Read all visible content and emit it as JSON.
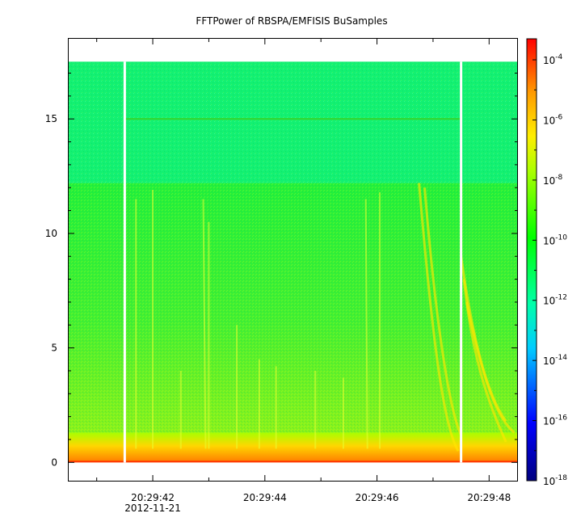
{
  "chart_data": {
    "type": "heatmap",
    "title": "FFTPower of RBSPA/EMFISIS  BuSamples",
    "xlabel": "",
    "ylabel": "",
    "x_axis": {
      "start": "20:29:40.5",
      "end": "20:29:48.5",
      "ticks": [
        {
          "value": 42,
          "label": "20:29:42",
          "sublabel": "2012-11-21"
        },
        {
          "value": 44,
          "label": "20:29:44",
          "sublabel": ""
        },
        {
          "value": 46,
          "label": "20:29:46",
          "sublabel": ""
        },
        {
          "value": 48,
          "label": "20:29:48",
          "sublabel": ""
        }
      ]
    },
    "y_axis": {
      "range": [
        -0.8,
        18.5
      ],
      "ticks": [
        0,
        5,
        10,
        15
      ],
      "tick_labels": [
        "0",
        "5",
        "10",
        "15"
      ]
    },
    "data_extent": {
      "y_max": 17.5
    },
    "data_gaps": [
      41.5,
      47.5
    ],
    "features": {
      "line_15_present": true,
      "emission_band_upper": 12.2
    },
    "colorbar": {
      "scale": "log",
      "range": [
        -18,
        -3.3
      ],
      "tick_exponents": [
        "-4",
        "-6",
        "-8",
        "-10",
        "-12",
        "-14",
        "-16",
        "-18"
      ],
      "tick_values": [
        -4,
        -6,
        -8,
        -10,
        -12,
        -14,
        -16,
        -18
      ],
      "base": "10",
      "colormap": [
        "#00008b",
        "#0000ff",
        "#00ffff",
        "#00ff00",
        "#ffff00",
        "#ff8000",
        "#ff0000"
      ]
    },
    "grid": false
  }
}
